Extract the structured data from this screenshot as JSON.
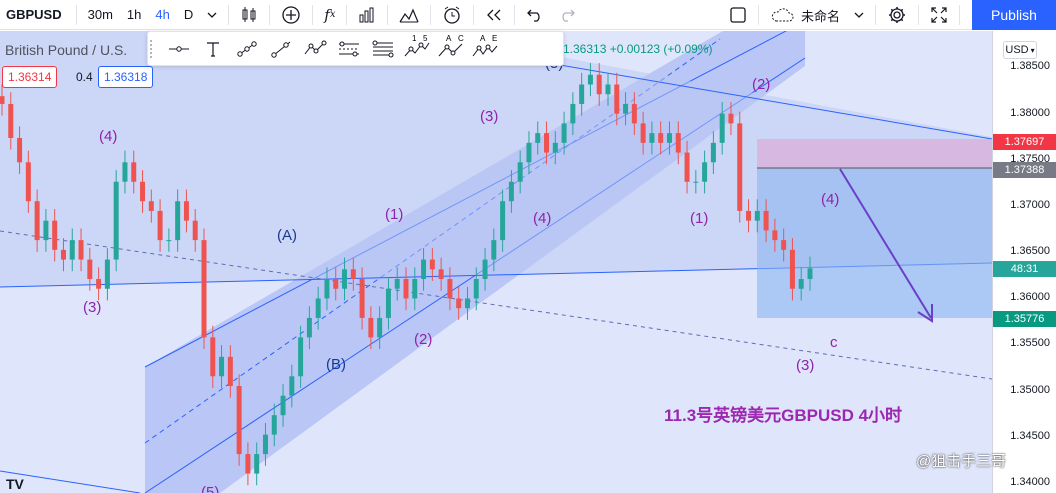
{
  "toolbar": {
    "symbol": "GBPUSD",
    "intervals": [
      "30m",
      "1h",
      "4h",
      "D"
    ],
    "active_interval": "4h",
    "layout_name": "未命名",
    "publish_label": "Publish",
    "icons": [
      "chevron-down-icon",
      "candles-icon",
      "plus-circle-icon",
      "fx-icon",
      "bar-chart-icon",
      "templates-icon",
      "alert-icon",
      "replay-icon",
      "undo-icon",
      "redo-icon",
      "layout-icon",
      "cloud-icon",
      "gear-icon",
      "fullscreen-icon",
      "camera-icon"
    ]
  },
  "legend": {
    "title": "British Pound / U.S.",
    "bid": "1.36314",
    "spread": "0.4",
    "ask": "1.36318",
    "ohlc_tail": "1.36313 +0.00123 (+0.09%)"
  },
  "drawing_tools": {
    "wave_labels": [
      "1",
      "5",
      "A",
      "C",
      "A",
      "E"
    ],
    "icons": [
      "horizontal-ray-icon",
      "text-icon",
      "trend-line-icon",
      "ray-icon",
      "polyline-icon",
      "parallel-channel-icon",
      "fib-channel-icon",
      "elliott-impulse-icon",
      "elliott-correction-icon",
      "elliott-triangle-icon"
    ]
  },
  "price_axis": {
    "currency": "USD",
    "ticks": [
      "1.38500",
      "1.38000",
      "1.37500",
      "1.37000",
      "1.36500",
      "1.36000",
      "1.35500",
      "1.35000",
      "1.34500",
      "1.34000"
    ],
    "tags": [
      {
        "value": "1.37697",
        "color": "#f23645"
      },
      {
        "value": "1.37388",
        "color": "#787b86"
      },
      {
        "value": "48:31",
        "color": "#26a69a"
      },
      {
        "value": "1.35776",
        "color": "#089981"
      }
    ]
  },
  "wave_labels": [
    {
      "text": "(4)",
      "color": "#8e24aa"
    },
    {
      "text": "(3)",
      "color": "#8e24aa"
    },
    {
      "text": "(A)",
      "color": "#1a3a8f"
    },
    {
      "text": "(B)",
      "color": "#1a3a8f"
    },
    {
      "text": "(1)",
      "color": "#8e24aa"
    },
    {
      "text": "(2)",
      "color": "#8e24aa"
    },
    {
      "text": "(3)",
      "color": "#8e24aa"
    },
    {
      "text": "(4)",
      "color": "#8e24aa"
    },
    {
      "text": "(5)",
      "color": "#1a3a8f"
    },
    {
      "text": "(2)",
      "color": "#8e24aa"
    },
    {
      "text": "(1)",
      "color": "#8e24aa"
    },
    {
      "text": "(4)",
      "color": "#8e24aa"
    },
    {
      "text": "c",
      "color": "#8e24aa"
    },
    {
      "text": "(3)",
      "color": "#8e24aa"
    },
    {
      "text": "(5)",
      "color": "#8e24aa"
    }
  ],
  "annotation": "11.3号英镑美元GBPUSD 4小时",
  "watermark": "@狙击手三哥",
  "logo_text": "TV",
  "chart_data": {
    "type": "candlestick",
    "symbol": "GBPUSD",
    "interval": "4h",
    "ylim": [
      1.34,
      1.3875
    ],
    "closes": [
      1.38,
      1.3765,
      1.374,
      1.37,
      1.366,
      1.368,
      1.365,
      1.364,
      1.366,
      1.364,
      1.362,
      1.361,
      1.364,
      1.372,
      1.374,
      1.372,
      1.37,
      1.369,
      1.366,
      1.366,
      1.37,
      1.368,
      1.366,
      1.356,
      1.352,
      1.354,
      1.351,
      1.344,
      1.342,
      1.344,
      1.346,
      1.348,
      1.35,
      1.352,
      1.356,
      1.358,
      1.36,
      1.362,
      1.361,
      1.363,
      1.362,
      1.358,
      1.356,
      1.358,
      1.361,
      1.362,
      1.36,
      1.362,
      1.364,
      1.363,
      1.362,
      1.36,
      1.359,
      1.36,
      1.362,
      1.364,
      1.366,
      1.37,
      1.372,
      1.374,
      1.376,
      1.377,
      1.375,
      1.376,
      1.378,
      1.38,
      1.382,
      1.383,
      1.381,
      1.382,
      1.379,
      1.38,
      1.378,
      1.376,
      1.377,
      1.376,
      1.377,
      1.375,
      1.372,
      1.372,
      1.374,
      1.376,
      1.379,
      1.378,
      1.369,
      1.368,
      1.369,
      1.367,
      1.366,
      1.365,
      1.361,
      1.362,
      1.3631
    ],
    "annotation_prices": {
      "channel_top_right": 1.37697,
      "rect_top": 1.37388,
      "target": 1.35776,
      "last": 1.36313
    }
  }
}
